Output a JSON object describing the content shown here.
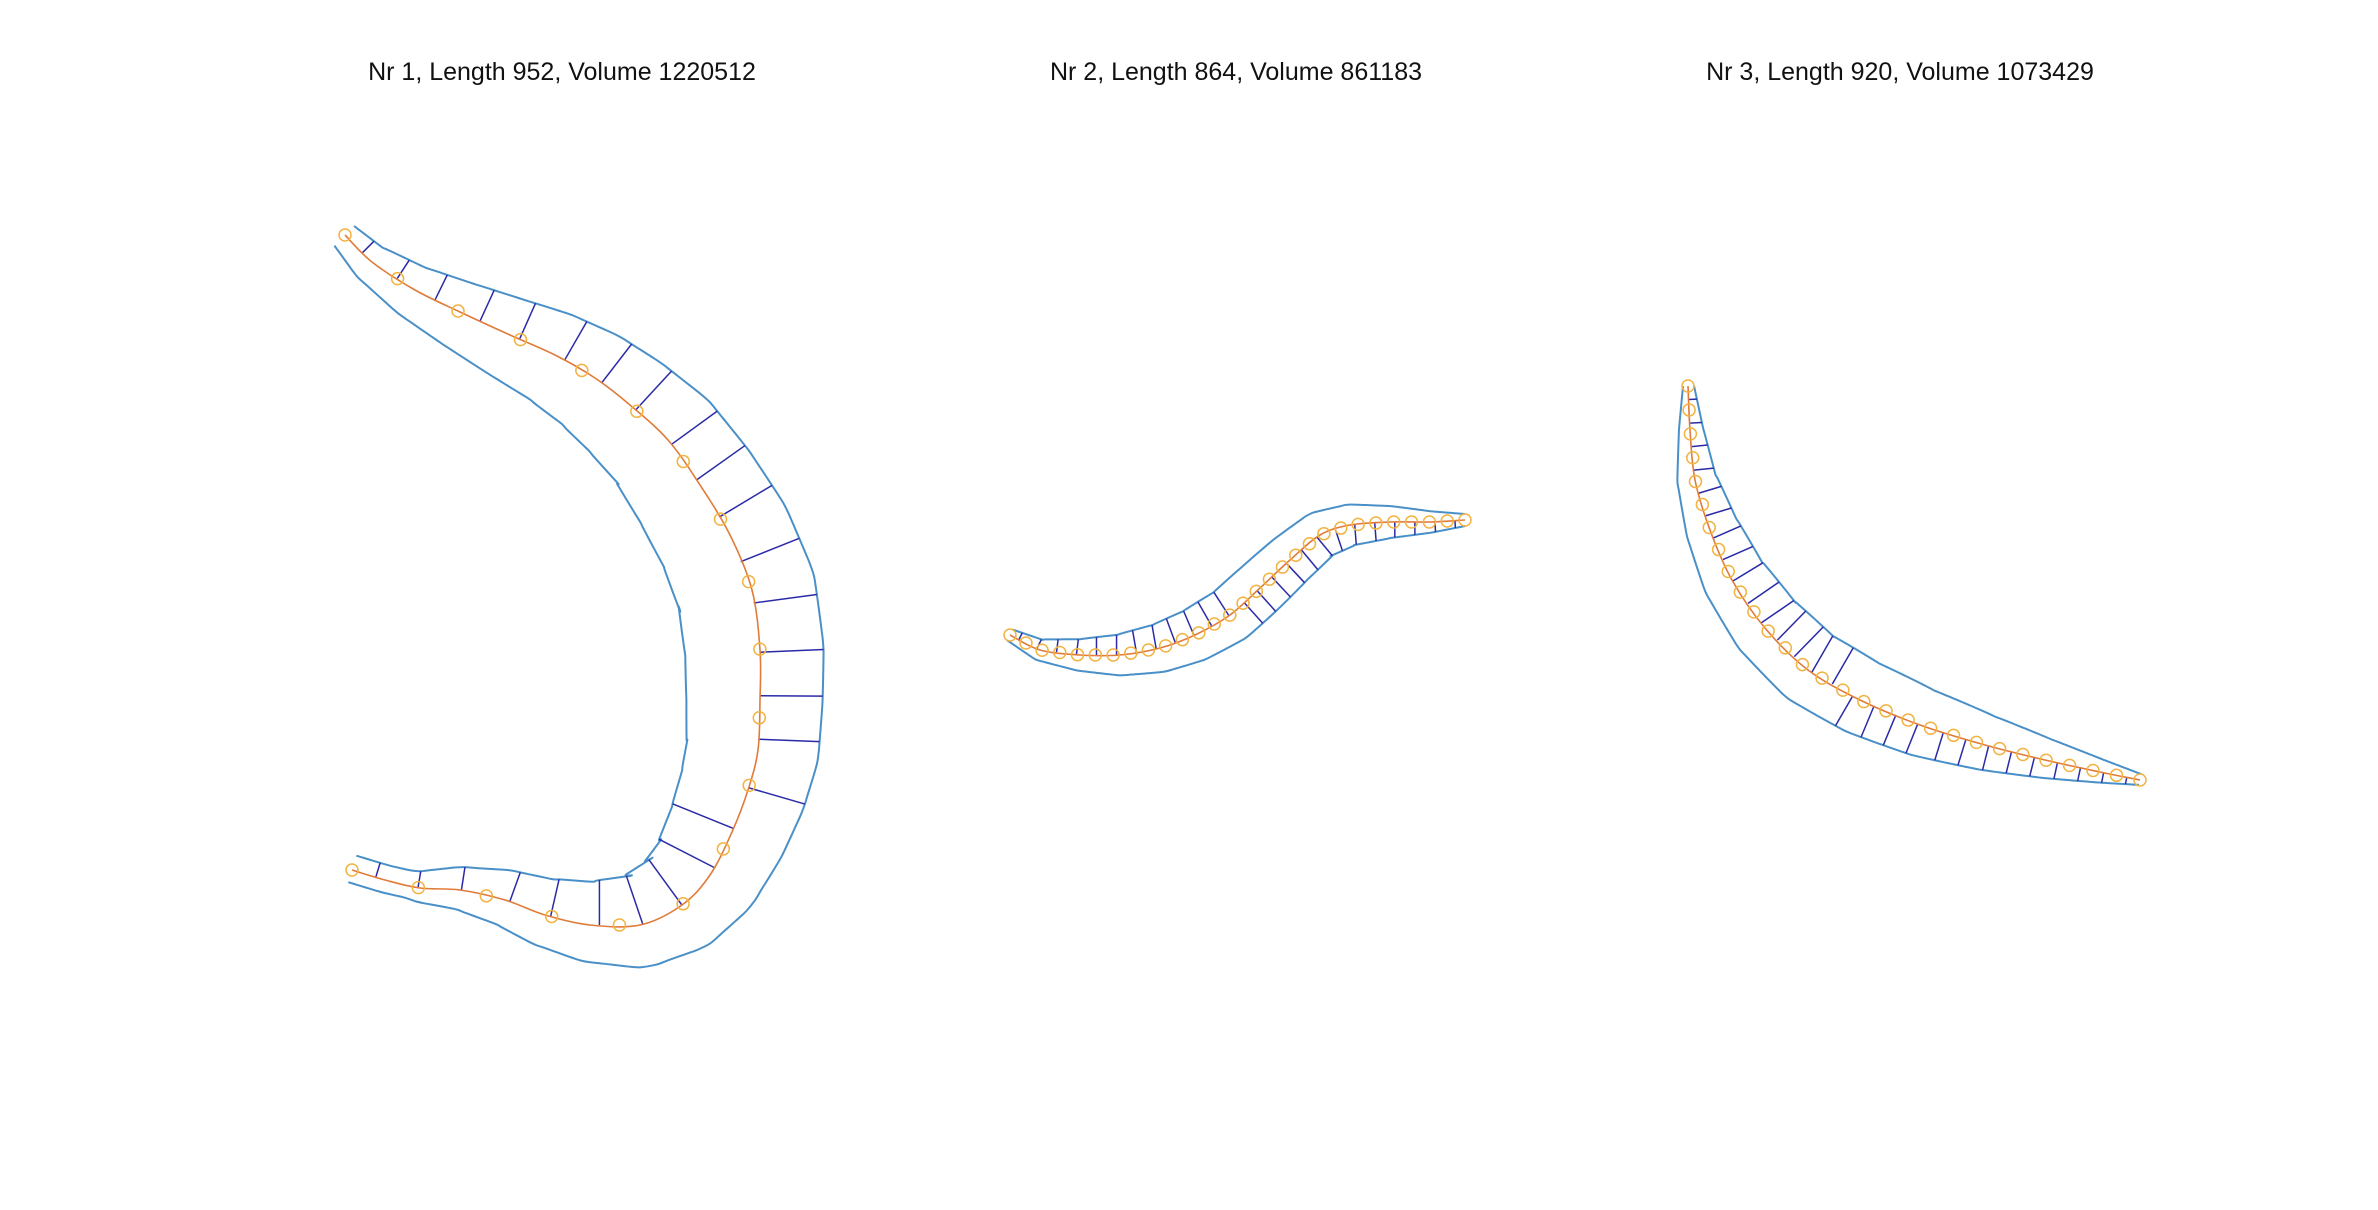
{
  "colors": {
    "outline": "#4a90c8",
    "centerline": "#e07b39",
    "marker": "#f2b340",
    "rib": "#2a2aa8",
    "title": "#111111"
  },
  "panels": [
    {
      "title": "Nr 1, Length 952, Volume 1220512",
      "centerline_marker_count": 19,
      "rib_count": 27
    },
    {
      "title": "Nr 2, Length 864, Volume 861183",
      "centerline_marker_count": 29,
      "rib_count": 25
    },
    {
      "title": "Nr 3, Length 920, Volume 1073429",
      "centerline_marker_count": 29,
      "rib_count": 28
    }
  ]
}
